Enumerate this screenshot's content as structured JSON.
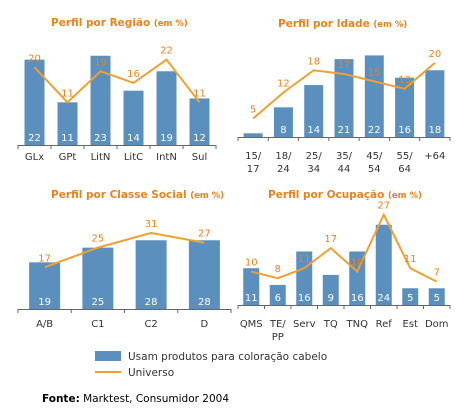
{
  "colors": {
    "bar": "#5b8fbd",
    "line": "#f0a030",
    "title": "#e8831c",
    "axis": "#666666"
  },
  "chart_data": [
    {
      "type": "bar",
      "title": "Perfil por Região",
      "unit": "(em %)",
      "categories": [
        "GLx",
        "GPt",
        "LitN",
        "LitC",
        "IntN",
        "Sul"
      ],
      "series": [
        {
          "name": "Usam produtos para coloração cabelo",
          "type": "bar",
          "values": [
            22,
            11,
            23,
            14,
            19,
            12
          ]
        },
        {
          "name": "Universo",
          "type": "line",
          "values": [
            20,
            11,
            19,
            16,
            22,
            11
          ]
        }
      ]
    },
    {
      "type": "bar",
      "title": "Perfil por Idade",
      "unit": "(em %)",
      "categories": [
        "15/\n17",
        "18/\n24",
        "25/\n34",
        "35/\n44",
        "45/\n54",
        "55/\n64",
        "+64"
      ],
      "series": [
        {
          "name": "Usam produtos para coloração cabelo",
          "type": "bar",
          "values": [
            1,
            8,
            14,
            21,
            22,
            16,
            18
          ]
        },
        {
          "name": "Universo",
          "type": "line",
          "values": [
            5,
            12,
            18,
            17,
            15,
            13,
            20
          ]
        }
      ]
    },
    {
      "type": "bar",
      "title": "Perfil por Classe Social",
      "unit": "(em %)",
      "categories": [
        "A/B",
        "C1",
        "C2",
        "D"
      ],
      "series": [
        {
          "name": "Usam produtos para coloração cabelo",
          "type": "bar",
          "values": [
            19,
            25,
            28,
            28
          ]
        },
        {
          "name": "Universo",
          "type": "line",
          "values": [
            17,
            25,
            31,
            27
          ]
        }
      ]
    },
    {
      "type": "bar",
      "title": "Perfil por Ocupação",
      "unit": "(em %)",
      "categories": [
        "QMS",
        "TE/\nPP",
        "Serv",
        "TQ",
        "TNQ",
        "Ref",
        "Est",
        "Dom"
      ],
      "series": [
        {
          "name": "Usam produtos para coloração cabelo",
          "type": "bar",
          "values": [
            11,
            6,
            16,
            9,
            16,
            24,
            5,
            5
          ]
        },
        {
          "name": "Universo",
          "type": "line",
          "values": [
            10,
            8,
            11,
            17,
            10,
            27,
            11,
            7
          ]
        }
      ]
    }
  ],
  "legend": {
    "bar_label": "Usam produtos para coloração cabelo",
    "line_label": "Universo"
  },
  "source": {
    "label": "Fonte:",
    "text": "Marktest, Consumidor 2004"
  }
}
